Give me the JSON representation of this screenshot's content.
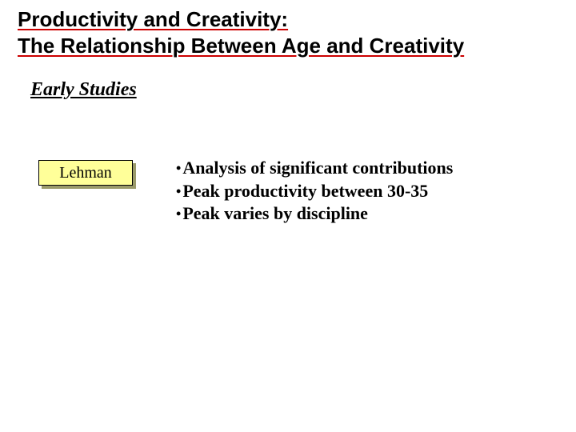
{
  "title": {
    "line1": "Productivity and Creativity:",
    "line2": "The Relationship Between Age and Creativity"
  },
  "subtitle": "Early Studies",
  "name_box": {
    "label": "Lehman",
    "bg_color": "#ffff99",
    "shadow_color": "#9a9a6a",
    "border_color": "#000000"
  },
  "bullets": [
    "Analysis of significant contributions",
    "Peak productivity between 30-35",
    "Peak varies by discipline"
  ],
  "colors": {
    "background": "#ffffff",
    "title_underline": "#cc0000",
    "text": "#000000"
  }
}
